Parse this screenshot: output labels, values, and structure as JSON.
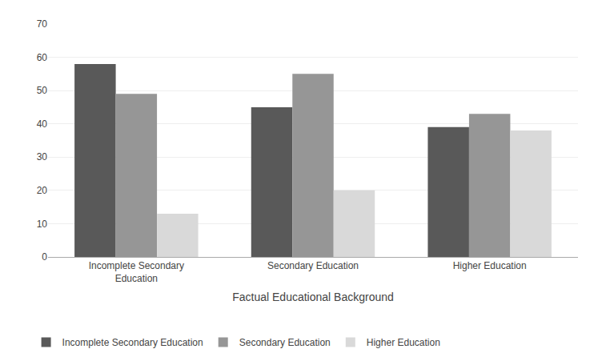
{
  "chart_data": {
    "type": "bar",
    "categories": [
      "Incomplete Secondary\nEducation",
      "Secondary Education",
      "Higher Education"
    ],
    "series": [
      {
        "name": "Incomplete Secondary Education",
        "color": "#595959",
        "values": [
          58,
          45,
          39
        ]
      },
      {
        "name": "Secondary Education",
        "color": "#969696",
        "values": [
          49,
          55,
          43
        ]
      },
      {
        "name": "Higher Education",
        "color": "#d9d9d9",
        "values": [
          13,
          20,
          38
        ]
      }
    ],
    "xlabel": "Factual Educational Background",
    "ylim": [
      0,
      70
    ],
    "yticks": [
      0,
      10,
      20,
      30,
      40,
      50,
      60,
      70
    ],
    "grid": true,
    "legend": "bottom"
  }
}
